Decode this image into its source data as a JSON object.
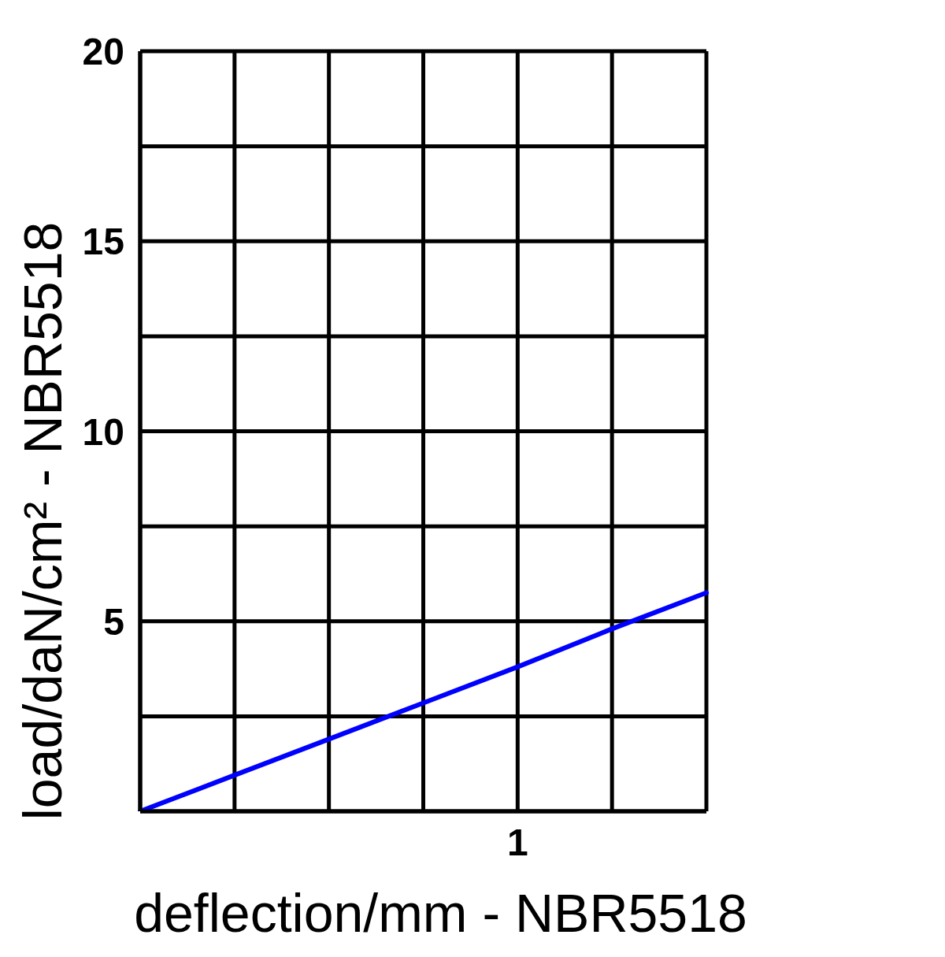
{
  "chart_data": {
    "type": "line",
    "xlabel": "deflection/mm - NBR5518",
    "ylabel": "load/daN/cm² - NBR5518",
    "categories": [
      null,
      null,
      null,
      null,
      "1",
      null,
      null
    ],
    "values": [
      0,
      0.95,
      1.9,
      2.85,
      3.8,
      4.8,
      5.75
    ],
    "color": "#0000ff",
    "ylim": [
      0,
      20
    ],
    "yticks": [
      {
        "value": 0,
        "label": null
      },
      {
        "value": 2.5,
        "label": null
      },
      5,
      {
        "value": 7.5,
        "label": null
      },
      10,
      {
        "value": 12.5,
        "label": null
      },
      15,
      {
        "value": 17.5,
        "label": null
      },
      20
    ],
    "grid": true
  }
}
